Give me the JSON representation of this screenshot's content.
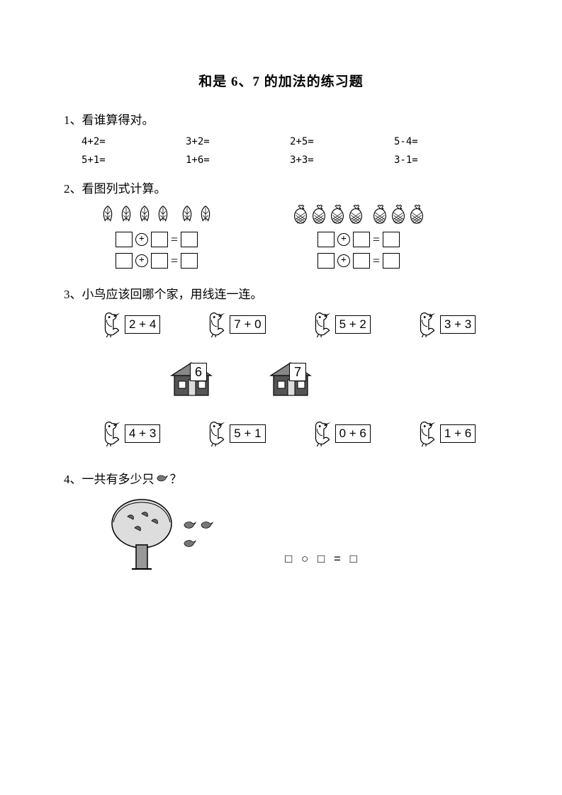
{
  "title": "和是 6、7 的加法的练习题",
  "q1": {
    "heading": "1、看谁算得对。",
    "problems": [
      "4+2=",
      "3+2=",
      "2+5=",
      "5-4=",
      "5+1=",
      "1+6=",
      "3+3=",
      "3-1="
    ]
  },
  "q2": {
    "heading": "2、看图列式计算。",
    "group1": {
      "set1_count": 4,
      "set2_count": 2,
      "icon": "leaf"
    },
    "group2": {
      "set1_count": 4,
      "set2_count": 3,
      "icon": "pineapple"
    }
  },
  "q3": {
    "heading": "3、小鸟应该回哪个家，用线连一连。",
    "top_row": [
      "2 + 4",
      "7 + 0",
      "5 + 2",
      "3 + 3"
    ],
    "houses": [
      "6",
      "7"
    ],
    "bottom_row": [
      "4 + 3",
      "5 + 1",
      "0 + 6",
      "1 + 6"
    ]
  },
  "q4": {
    "heading_prefix": "4、一共有多少只",
    "heading_suffix": "？",
    "equation": "□ ○ □ = □"
  },
  "colors": {
    "text": "#000000",
    "background": "#ffffff",
    "stroke": "#000000",
    "fill_gray": "#888888"
  }
}
